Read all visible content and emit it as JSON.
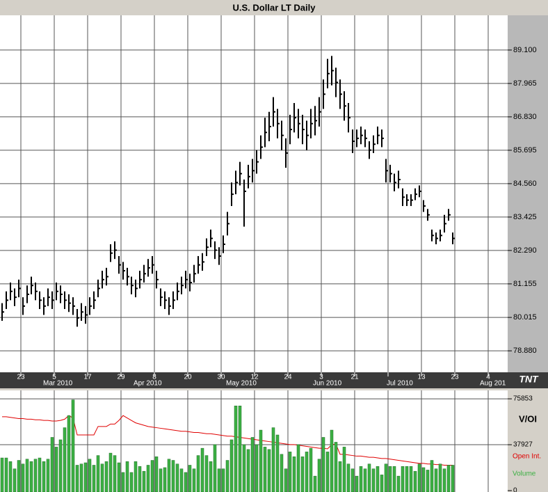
{
  "chart_data": [
    {
      "type": "ohlc",
      "title": "U.S. Dollar LT Daily",
      "color": "#000000",
      "grid": true,
      "high": [
        80.5,
        80.9,
        81.2,
        81.0,
        81.3,
        80.7,
        81.1,
        81.4,
        81.2,
        80.9,
        80.7,
        81.0,
        80.9,
        81.2,
        81.1,
        80.9,
        80.8,
        80.7,
        80.3,
        80.5,
        80.4,
        80.7,
        80.9,
        81.3,
        81.6,
        81.7,
        82.5,
        82.6,
        82.1,
        81.9,
        81.7,
        81.4,
        81.3,
        81.6,
        81.8,
        82.0,
        82.1,
        81.6,
        81.0,
        80.9,
        80.7,
        80.9,
        81.2,
        81.4,
        81.6,
        81.5,
        81.8,
        82.1,
        82.2,
        82.7,
        83.0,
        82.6,
        82.4,
        82.8,
        83.6,
        84.6,
        85.0,
        85.3,
        84.7,
        85.2,
        85.4,
        85.7,
        86.2,
        86.8,
        87.0,
        87.5,
        87.1,
        86.7,
        86.1,
        86.9,
        87.3,
        87.1,
        86.9,
        86.7,
        87.1,
        87.2,
        87.5,
        88.1,
        88.8,
        88.9,
        88.5,
        88.1,
        87.7,
        87.3,
        86.4,
        86.4,
        86.5,
        86.4,
        86.0,
        86.2,
        86.5,
        86.4,
        85.4,
        85.2,
        84.9,
        85.0,
        84.4,
        84.2,
        84.2,
        84.4,
        84.5,
        84.0,
        83.7,
        83.0,
        82.9,
        83.0,
        83.5,
        83.7,
        82.9
      ],
      "low": [
        79.9,
        80.3,
        80.6,
        80.4,
        80.7,
        80.1,
        80.5,
        80.8,
        80.6,
        80.3,
        80.1,
        80.4,
        80.3,
        80.6,
        80.5,
        80.3,
        80.2,
        80.1,
        79.7,
        79.9,
        79.8,
        80.1,
        80.3,
        80.7,
        81.0,
        81.1,
        81.9,
        82.0,
        81.5,
        81.3,
        81.1,
        80.8,
        80.7,
        81.0,
        81.2,
        81.4,
        81.5,
        81.0,
        80.4,
        80.3,
        80.1,
        80.3,
        80.6,
        80.8,
        81.0,
        80.9,
        81.2,
        81.5,
        81.6,
        82.1,
        82.4,
        82.0,
        81.8,
        82.2,
        82.8,
        83.8,
        84.2,
        84.5,
        83.1,
        84.4,
        84.6,
        84.9,
        85.4,
        85.8,
        86.0,
        86.5,
        86.1,
        85.7,
        85.1,
        85.9,
        86.3,
        86.1,
        85.9,
        85.7,
        86.1,
        86.2,
        86.5,
        87.1,
        87.8,
        87.9,
        87.5,
        87.1,
        86.7,
        86.3,
        85.6,
        85.8,
        85.9,
        85.8,
        85.4,
        85.6,
        85.9,
        85.8,
        84.6,
        84.6,
        84.3,
        84.4,
        83.8,
        83.8,
        83.8,
        84.0,
        84.1,
        83.6,
        83.3,
        82.6,
        82.5,
        82.6,
        82.9,
        83.3,
        82.5
      ],
      "close": [
        80.2,
        80.6,
        80.9,
        80.7,
        81.0,
        80.4,
        80.8,
        81.1,
        80.9,
        80.6,
        80.4,
        80.7,
        80.6,
        80.9,
        80.8,
        80.6,
        80.5,
        80.4,
        80.0,
        80.2,
        80.1,
        80.4,
        80.6,
        81.0,
        81.3,
        81.4,
        82.2,
        82.3,
        81.8,
        81.6,
        81.4,
        81.1,
        81.0,
        81.3,
        81.5,
        81.7,
        81.8,
        81.3,
        80.7,
        80.6,
        80.4,
        80.6,
        80.9,
        81.1,
        81.3,
        81.2,
        81.5,
        81.8,
        81.9,
        82.4,
        82.7,
        82.3,
        82.1,
        82.5,
        83.2,
        84.2,
        84.6,
        84.9,
        84.3,
        84.8,
        85.0,
        85.3,
        85.8,
        86.3,
        86.5,
        87.0,
        86.6,
        86.2,
        85.6,
        86.4,
        86.8,
        86.6,
        86.4,
        86.2,
        86.6,
        86.7,
        87.0,
        87.6,
        88.3,
        88.4,
        88.0,
        87.6,
        87.2,
        86.8,
        86.0,
        86.1,
        86.2,
        86.1,
        85.7,
        85.9,
        86.2,
        86.1,
        85.0,
        84.9,
        84.6,
        84.7,
        84.1,
        84.0,
        84.0,
        84.2,
        84.3,
        83.8,
        83.5,
        82.8,
        82.7,
        82.8,
        83.2,
        83.5,
        82.7
      ],
      "ylim": [
        78.15,
        90.28
      ],
      "yticks": [
        {
          "value": 89.1,
          "label": "89.100"
        },
        87.965,
        {
          "value": 86.83,
          "label": "86.830"
        },
        85.695,
        {
          "value": 84.56,
          "label": "84.560"
        },
        83.425,
        {
          "value": 82.29,
          "label": "82.290"
        },
        81.155,
        80.015,
        {
          "value": 78.88,
          "label": "78.880"
        }
      ],
      "xticks": [
        "23",
        "5",
        "17",
        "29",
        "8",
        "20",
        "30",
        "12",
        "24",
        "3",
        "21",
        null,
        "13",
        "23",
        "4"
      ],
      "months": [
        "Mar 2010",
        "Apr 2010",
        "May 2010",
        "Jun 2010",
        "Jul 2010",
        "Aug 201"
      ]
    },
    {
      "type": "volume",
      "title": "V/OI",
      "series": [
        {
          "name": "Open Int.",
          "color": "#e00000",
          "values": [
            61000,
            61000,
            60500,
            60000,
            59500,
            59500,
            59000,
            59000,
            58500,
            58500,
            58000,
            58000,
            57500,
            57500,
            58000,
            59000,
            62000,
            60000,
            46000,
            46000,
            46000,
            46000,
            46000,
            53000,
            53000,
            53000,
            55000,
            55000,
            58000,
            62000,
            60000,
            58000,
            56000,
            55000,
            54000,
            53000,
            52500,
            52000,
            51500,
            51000,
            50500,
            50000,
            49500,
            49000,
            49000,
            48500,
            48000,
            48000,
            47500,
            47000,
            47000,
            46500,
            46000,
            45500,
            45000,
            45000,
            44500,
            44000,
            43500,
            43000,
            42500,
            42000,
            41500,
            41000,
            40500,
            40000,
            39500,
            39000,
            38500,
            38000,
            38000,
            37500,
            37000,
            36500,
            36000,
            35500,
            35000,
            35000,
            34500,
            38000,
            38500,
            30000,
            30000,
            29500,
            29000,
            28500,
            28500,
            28000,
            27500,
            27500,
            27000,
            26500,
            26500,
            26000,
            25500,
            25000,
            24500,
            24000,
            23500,
            23000,
            22500,
            22500,
            22000,
            22000,
            21500,
            21500,
            21000,
            21000,
            21000
          ]
        },
        {
          "name": "Volume",
          "color": "#3cb043",
          "values": [
            27000,
            27000,
            24000,
            18000,
            25000,
            22000,
            26000,
            24000,
            26000,
            27000,
            24000,
            26000,
            44000,
            36000,
            42000,
            52000,
            62000,
            75000,
            21000,
            22000,
            23000,
            26000,
            21000,
            29000,
            22000,
            24000,
            31000,
            29000,
            23000,
            15000,
            24000,
            15000,
            24000,
            20000,
            16000,
            21000,
            25000,
            28000,
            18000,
            19000,
            26000,
            25000,
            22000,
            18000,
            15000,
            21000,
            18000,
            29000,
            35000,
            29000,
            24000,
            38000,
            18000,
            18000,
            25000,
            42000,
            70000,
            70000,
            38000,
            34000,
            44000,
            38000,
            50000,
            36000,
            34000,
            52000,
            46000,
            30000,
            18000,
            32000,
            28000,
            38000,
            28000,
            32000,
            35000,
            12000,
            26000,
            44000,
            32000,
            50000,
            40000,
            24000,
            36000,
            22000,
            18000,
            12000,
            20000,
            18000,
            22000,
            18000,
            20000,
            13000,
            22000,
            20000,
            20000,
            12000,
            20000,
            20000,
            20000,
            16000,
            22000,
            19000,
            17000,
            25000,
            18000,
            22000,
            18000,
            21000,
            21000
          ]
        }
      ],
      "ylim": [
        0,
        82800
      ],
      "yticks": [
        0,
        37927,
        75853
      ]
    }
  ],
  "logo": "TNT"
}
